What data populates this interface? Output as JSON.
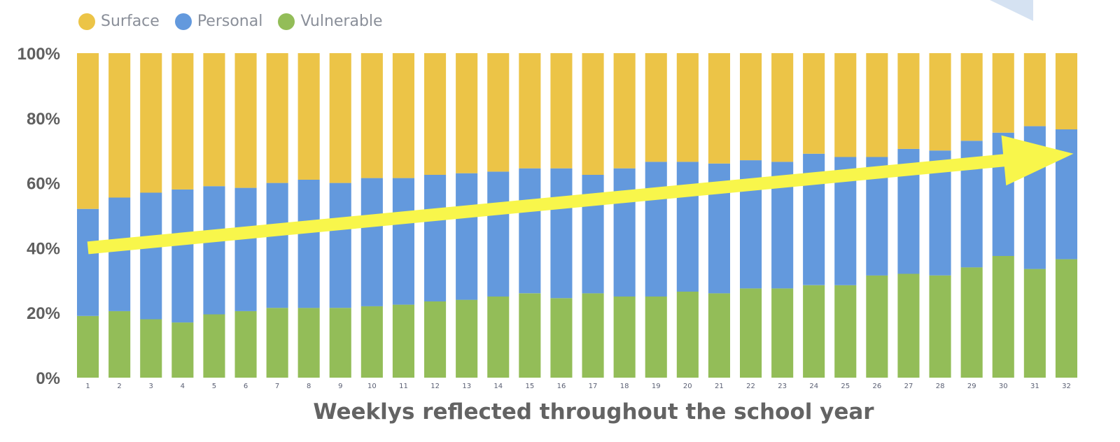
{
  "legend": [
    {
      "label": "Surface",
      "color": "#ecc447"
    },
    {
      "label": "Personal",
      "color": "#6399dd"
    },
    {
      "label": "Vulnerable",
      "color": "#93bd58"
    }
  ],
  "chart_data": {
    "type": "bar",
    "stacked": true,
    "title": "",
    "xlabel": "Weeklys reflected throughout the school year",
    "ylabel": "",
    "ylim": [
      0,
      100
    ],
    "y_ticks": [
      "0%",
      "20%",
      "40%",
      "60%",
      "80%",
      "100%"
    ],
    "categories": [
      "1",
      "2",
      "3",
      "4",
      "5",
      "6",
      "7",
      "8",
      "9",
      "10",
      "11",
      "12",
      "13",
      "14",
      "15",
      "16",
      "17",
      "18",
      "19",
      "20",
      "21",
      "22",
      "23",
      "24",
      "25",
      "26",
      "27",
      "28",
      "29",
      "30",
      "31",
      "32"
    ],
    "series": [
      {
        "name": "Vulnerable",
        "color": "#93bd58",
        "values": [
          19,
          20.5,
          18,
          17,
          19.5,
          20.5,
          21.5,
          21.5,
          21.5,
          22,
          22.5,
          23.5,
          24,
          25,
          26,
          24.5,
          26,
          25,
          25,
          26.5,
          26,
          27.5,
          27.5,
          28.5,
          28.5,
          31.5,
          32,
          31.5,
          34,
          37.5,
          33.5,
          36.5
        ]
      },
      {
        "name": "Personal",
        "color": "#6399dd",
        "values": [
          33,
          35,
          39,
          41,
          39.5,
          38,
          38.5,
          39.5,
          38.5,
          39.5,
          39,
          39,
          39,
          38.5,
          38.5,
          40,
          36.5,
          39.5,
          41.5,
          40,
          40,
          39.5,
          39,
          40.5,
          39.5,
          36.5,
          38.5,
          38.5,
          39,
          38,
          44,
          40
        ]
      },
      {
        "name": "Surface",
        "color": "#ecc447",
        "values": [
          48,
          44.5,
          43,
          42,
          41,
          41.5,
          40,
          39,
          40,
          38.5,
          38.5,
          37.5,
          37,
          36.5,
          35.5,
          35.5,
          37.5,
          35.5,
          33.5,
          33.5,
          34,
          33,
          33.5,
          31,
          32,
          32,
          29.5,
          30,
          27,
          24.5,
          22.5,
          23.5
        ]
      }
    ],
    "annotations": [
      {
        "type": "arrow",
        "color": "#f8f64b",
        "from": {
          "x": "1",
          "y": 40
        },
        "to": {
          "x": "32",
          "y": 69
        }
      }
    ],
    "grid": false,
    "legend_position": "top-left"
  }
}
